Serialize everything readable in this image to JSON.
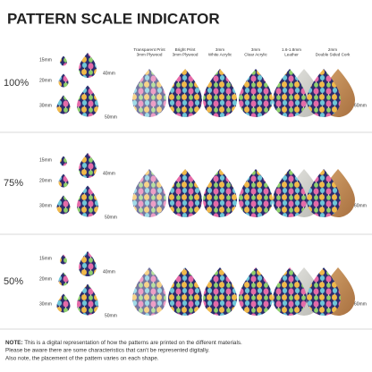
{
  "title": "PATTERN SCALE INDICATOR",
  "columns": [
    [
      "Transparent Print",
      "3mm Plywood"
    ],
    [
      "Bright Print",
      "3mm Plywood"
    ],
    [
      "3mm",
      "White Acrylic"
    ],
    [
      "3mm",
      "Clear Acrylic"
    ],
    [
      "1.6-1.8mm",
      "Leather"
    ],
    [
      "2mm",
      "Double Sided Cork"
    ]
  ],
  "rows": [
    {
      "scale": "100%",
      "sizes": [
        "15mm",
        "20mm",
        "30mm",
        "40mm",
        "50mm"
      ],
      "large_size": "60mm"
    },
    {
      "scale": "75%",
      "sizes": [
        "15mm",
        "20mm",
        "30mm",
        "40mm",
        "50mm"
      ],
      "large_size": "60mm"
    },
    {
      "scale": "50%",
      "sizes": [
        "15mm",
        "20mm",
        "30mm",
        "40mm",
        "50mm"
      ],
      "large_size": "60mm"
    }
  ],
  "note": {
    "label": "NOTE:",
    "lines": [
      "This is a digital representation of how the patterns are printed on the different materials.",
      "Please be aware there are some characteristics that can't be represented digitally.",
      "Also note, the placement of the pattern varies on each shape."
    ]
  }
}
